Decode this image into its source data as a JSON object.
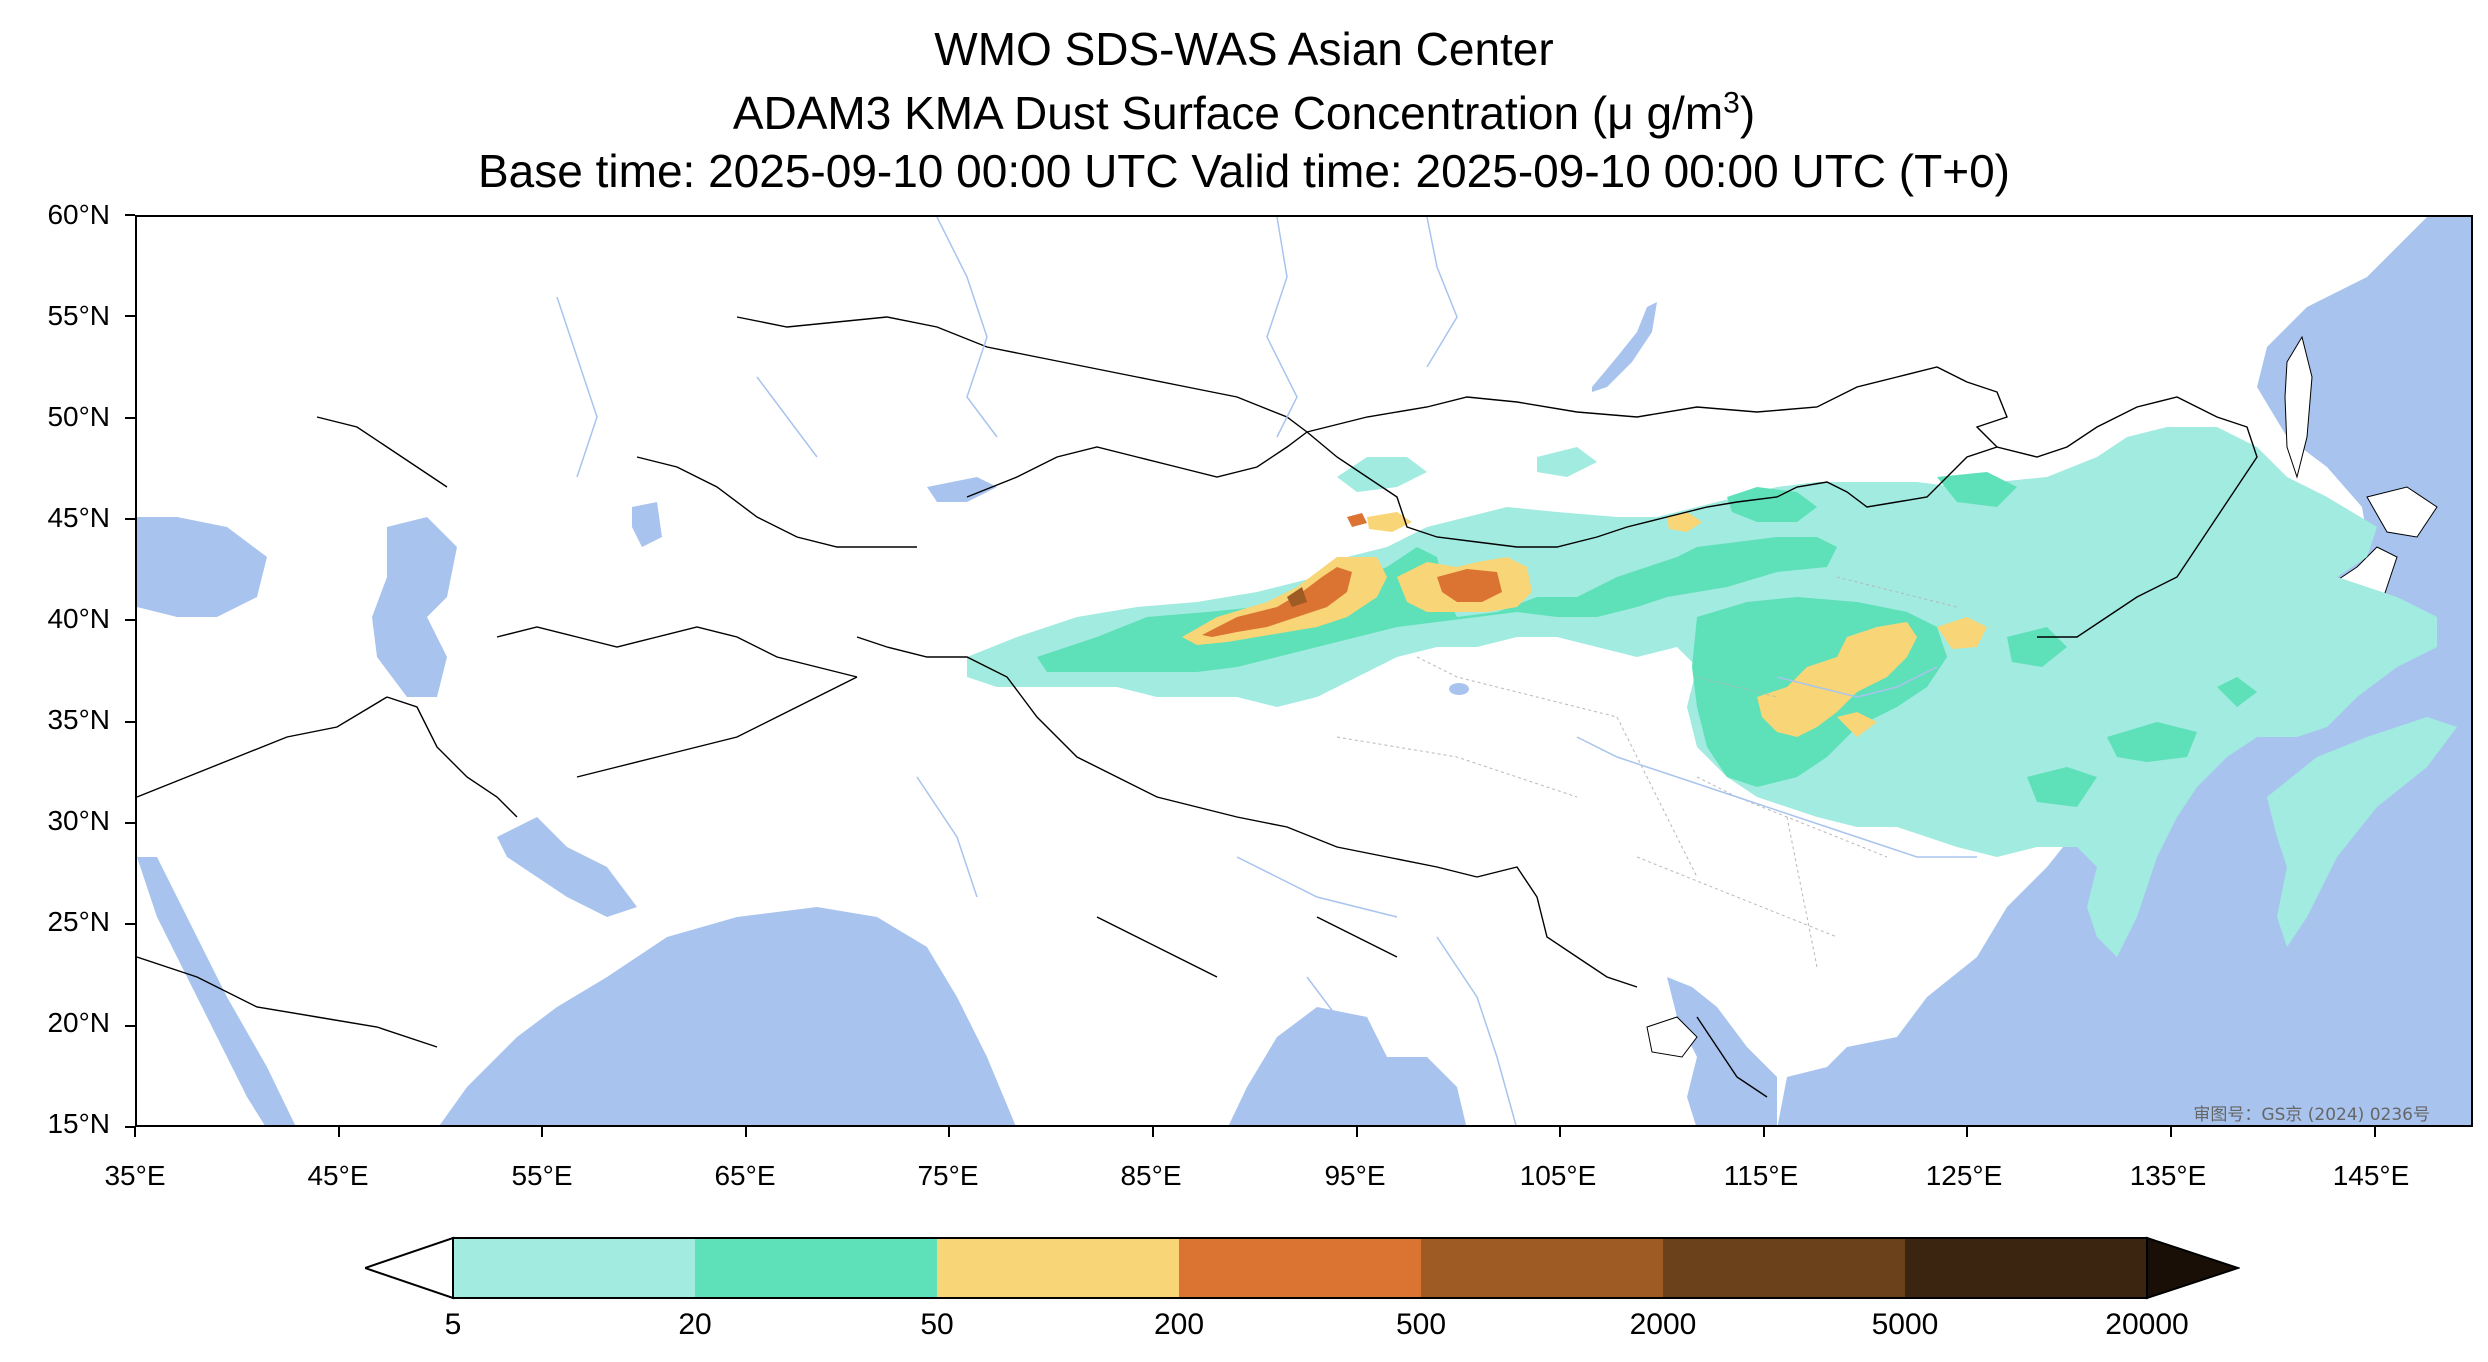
{
  "header": {
    "title1": "WMO SDS-WAS Asian Center",
    "title2_prefix": "ADAM3 KMA Dust Surface Concentration (",
    "title2_unit": "μ g/m",
    "title2_sup": "3",
    "title2_suffix": ")",
    "title3": "Base time: 2025-09-10 00:00 UTC Valid time: 2025-09-10 00:00 UTC (T+0)"
  },
  "map": {
    "lat_labels": [
      "60°N",
      "55°N",
      "50°N",
      "45°N",
      "40°N",
      "35°N",
      "30°N",
      "25°N",
      "20°N",
      "15°N"
    ],
    "lon_labels": [
      "35°E",
      "45°E",
      "55°E",
      "65°E",
      "75°E",
      "85°E",
      "95°E",
      "105°E",
      "115°E",
      "125°E",
      "135°E",
      "145°E"
    ],
    "watermark": "审图号：GS京 (2024) 0236号",
    "ocean_color": "#a8c4ee",
    "land_color": "#ffffff",
    "river_color": "#a8c4ee"
  },
  "colorbar": {
    "labels": [
      "5",
      "20",
      "50",
      "200",
      "500",
      "2000",
      "5000",
      "20000"
    ],
    "colors": [
      "#a1ebe0",
      "#5ee0b8",
      "#f8d677",
      "#db7333",
      "#9e5c24",
      "#6b411c",
      "#3b2410",
      "#1a0f06"
    ],
    "under_color": "#ffffff",
    "extend": "both"
  }
}
